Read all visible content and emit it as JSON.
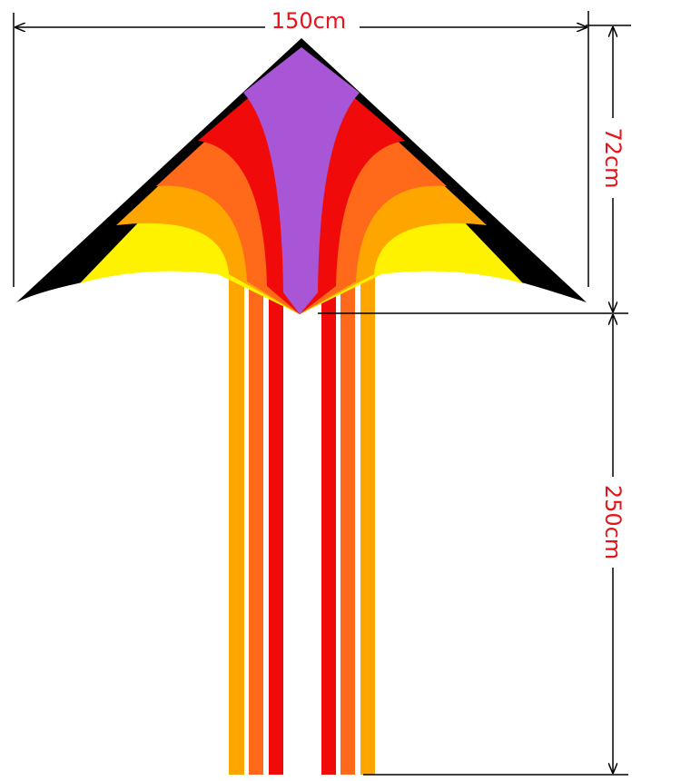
{
  "dimensions": {
    "width": "150cm",
    "height": "72cm",
    "tail_length": "250cm"
  }
}
